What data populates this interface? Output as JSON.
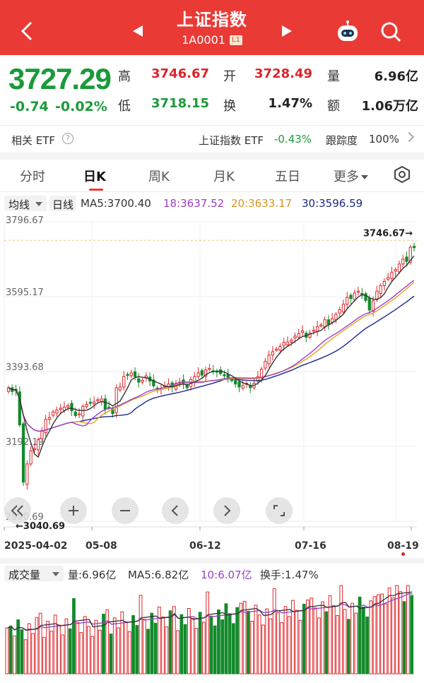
{
  "header": {
    "title": "上证指数",
    "code": "1A0001",
    "level_badge": "L1",
    "bg_color": "#ea3a35",
    "icons": [
      "back-chevron-icon",
      "prev-arrow-icon",
      "next-arrow-icon",
      "robot-assistant-icon",
      "search-icon"
    ]
  },
  "quote": {
    "price": "3727.29",
    "change": "-0.74",
    "change_pct": "-0.02%",
    "high_label": "高",
    "high": "3746.67",
    "open_label": "开",
    "open": "3728.49",
    "volume_label": "量",
    "volume": "6.96亿",
    "low_label": "低",
    "low": "3718.15",
    "turnover_label": "换",
    "turnover": "1.47%",
    "amount_label": "额",
    "amount": "1.06万亿"
  },
  "etf": {
    "label": "相关 ETF",
    "name": "上证指数 ETF",
    "change": "-0.43%",
    "track_label": "跟踪度",
    "track_value": "100%"
  },
  "tabs": [
    "分时",
    "日K",
    "周K",
    "月K",
    "五日",
    "更多"
  ],
  "active_tab": "日K",
  "ma_legend": {
    "mode": "均线",
    "period": "日线",
    "ma5": "MA5:3700.40",
    "ma18": "18:3637.52",
    "ma20": "20:3633.17",
    "ma30": "30:3596.59"
  },
  "colors": {
    "up": "#e0262c",
    "down": "#148a2c",
    "ma5": "#333333",
    "ma18": "#9b3fc9",
    "ma20": "#e7a21a",
    "ma30": "#1b2a8a"
  },
  "chart_data": {
    "type": "candlestick",
    "y_tick_labels": [
      "3796.67",
      "3595.17",
      "3393.68",
      "3192.19",
      "2990.69"
    ],
    "ylim": [
      2990.69,
      3796.67
    ],
    "x_tick_labels": [
      "2025-04-02",
      "05-08",
      "06-12",
      "07-16",
      "08-19"
    ],
    "max_marker": "3746.67→",
    "min_marker": "←3040.69",
    "close_series": [
      3350,
      3340,
      3342,
      3250,
      3096,
      3145,
      3180,
      3186,
      3210,
      3235,
      3265,
      3270,
      3285,
      3290,
      3295,
      3298,
      3302,
      3288,
      3275,
      3280,
      3300,
      3305,
      3310,
      3312,
      3318,
      3320,
      3292,
      3296,
      3280,
      3350,
      3352,
      3380,
      3385,
      3390,
      3380,
      3365,
      3370,
      3382,
      3368,
      3355,
      3346,
      3349,
      3355,
      3360,
      3352,
      3362,
      3365,
      3360,
      3350,
      3372,
      3380,
      3390,
      3384,
      3398,
      3402,
      3395,
      3392,
      3388,
      3383,
      3378,
      3370,
      3360,
      3352,
      3356,
      3362,
      3350,
      3362,
      3380,
      3400,
      3421,
      3438,
      3447,
      3454,
      3461,
      3472,
      3473,
      3478,
      3489,
      3496,
      3503,
      3486,
      3497,
      3505,
      3515,
      3519,
      3533,
      3520,
      3536,
      3548,
      3560,
      3575,
      3593,
      3590,
      3605,
      3610,
      3603,
      3585,
      3559,
      3584,
      3610,
      3625,
      3636,
      3647,
      3661,
      3668,
      3683,
      3696,
      3690,
      3728,
      3727
    ]
  },
  "chart_controls": [
    "fold-icon",
    "zoom-in-icon",
    "zoom-out-icon",
    "scroll-left-icon",
    "scroll-right-icon",
    "fullscreen-icon"
  ],
  "volume_legend": {
    "label": "成交量",
    "volume": "量:6.96亿",
    "ma5": "MA5:6.82亿",
    "ma10": "10:6.07亿",
    "turnover": "换手:1.47%"
  }
}
